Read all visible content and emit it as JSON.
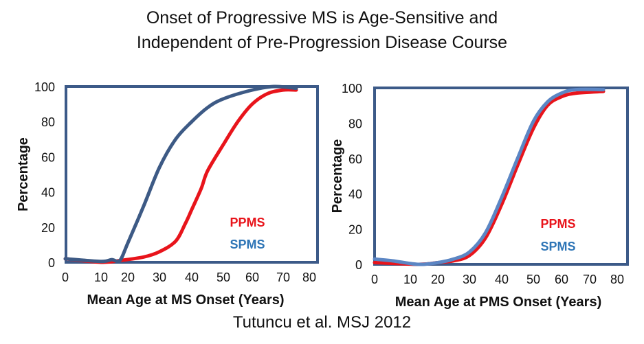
{
  "title_line1": "Onset of Progressive MS is Age-Sensitive and",
  "title_line2": "Independent of Pre-Progression Disease Course",
  "citation": "Tutuncu et al.  MSJ   2012",
  "colors": {
    "frame": "#3C5A88",
    "ppms": "#E8141B",
    "spms_left": "#3D5A85",
    "spms_right": "#5B86C4",
    "legend_spms": "#2E75B6"
  },
  "chart_data": [
    {
      "type": "line",
      "xlabel": "Mean Age at MS Onset (Years)",
      "ylabel": "Percentage",
      "xlim": [
        0,
        80
      ],
      "ylim": [
        0,
        100
      ],
      "xticks": [
        "0",
        "10",
        "20",
        "30",
        "40",
        "50",
        "60",
        "70",
        "80"
      ],
      "yticks": [
        "0",
        "20",
        "40",
        "60",
        "80",
        "100"
      ],
      "grid": false,
      "legend_position": "bottom-right",
      "series": [
        {
          "name": "PPMS",
          "color": "#E8141B",
          "x": [
            0,
            10,
            17,
            25,
            30,
            35,
            38,
            40,
            43,
            45,
            50,
            55,
            60,
            65,
            70,
            75
          ],
          "y": [
            2,
            0,
            1,
            3,
            6,
            12,
            22,
            30,
            42,
            52,
            67,
            80,
            90,
            96,
            98,
            98
          ]
        },
        {
          "name": "SPMS",
          "color": "#3D5A85",
          "x": [
            0,
            10,
            14,
            17,
            20,
            25,
            30,
            35,
            40,
            45,
            50,
            60,
            67,
            75
          ],
          "y": [
            2,
            0.5,
            1.5,
            1,
            11,
            32,
            54,
            70,
            80,
            88,
            93,
            98,
            100,
            99
          ]
        }
      ]
    },
    {
      "type": "line",
      "xlabel": "Mean Age at PMS Onset (Years)",
      "ylabel": "Percentage",
      "xlim": [
        0,
        80
      ],
      "ylim": [
        0,
        100
      ],
      "xticks": [
        "0",
        "10",
        "20",
        "30",
        "40",
        "50",
        "60",
        "70",
        "80"
      ],
      "yticks": [
        "0",
        "20",
        "40",
        "60",
        "80",
        "100"
      ],
      "grid": false,
      "legend_position": "bottom-right",
      "series": [
        {
          "name": "PPMS",
          "color": "#E8141B",
          "x": [
            0,
            13,
            20,
            25,
            30,
            35,
            40,
            45,
            50,
            55,
            60,
            65,
            75
          ],
          "y": [
            1,
            0,
            1,
            2,
            5,
            15,
            34,
            56,
            77,
            90,
            95,
            97,
            98
          ]
        },
        {
          "name": "SPMS",
          "color": "#5B86C4",
          "x": [
            0,
            5,
            13,
            20,
            25,
            30,
            35,
            40,
            45,
            50,
            55,
            60,
            65,
            75
          ],
          "y": [
            3,
            2,
            0,
            1,
            3,
            7,
            18,
            38,
            60,
            81,
            92,
            97,
            99,
            99
          ]
        }
      ]
    }
  ]
}
